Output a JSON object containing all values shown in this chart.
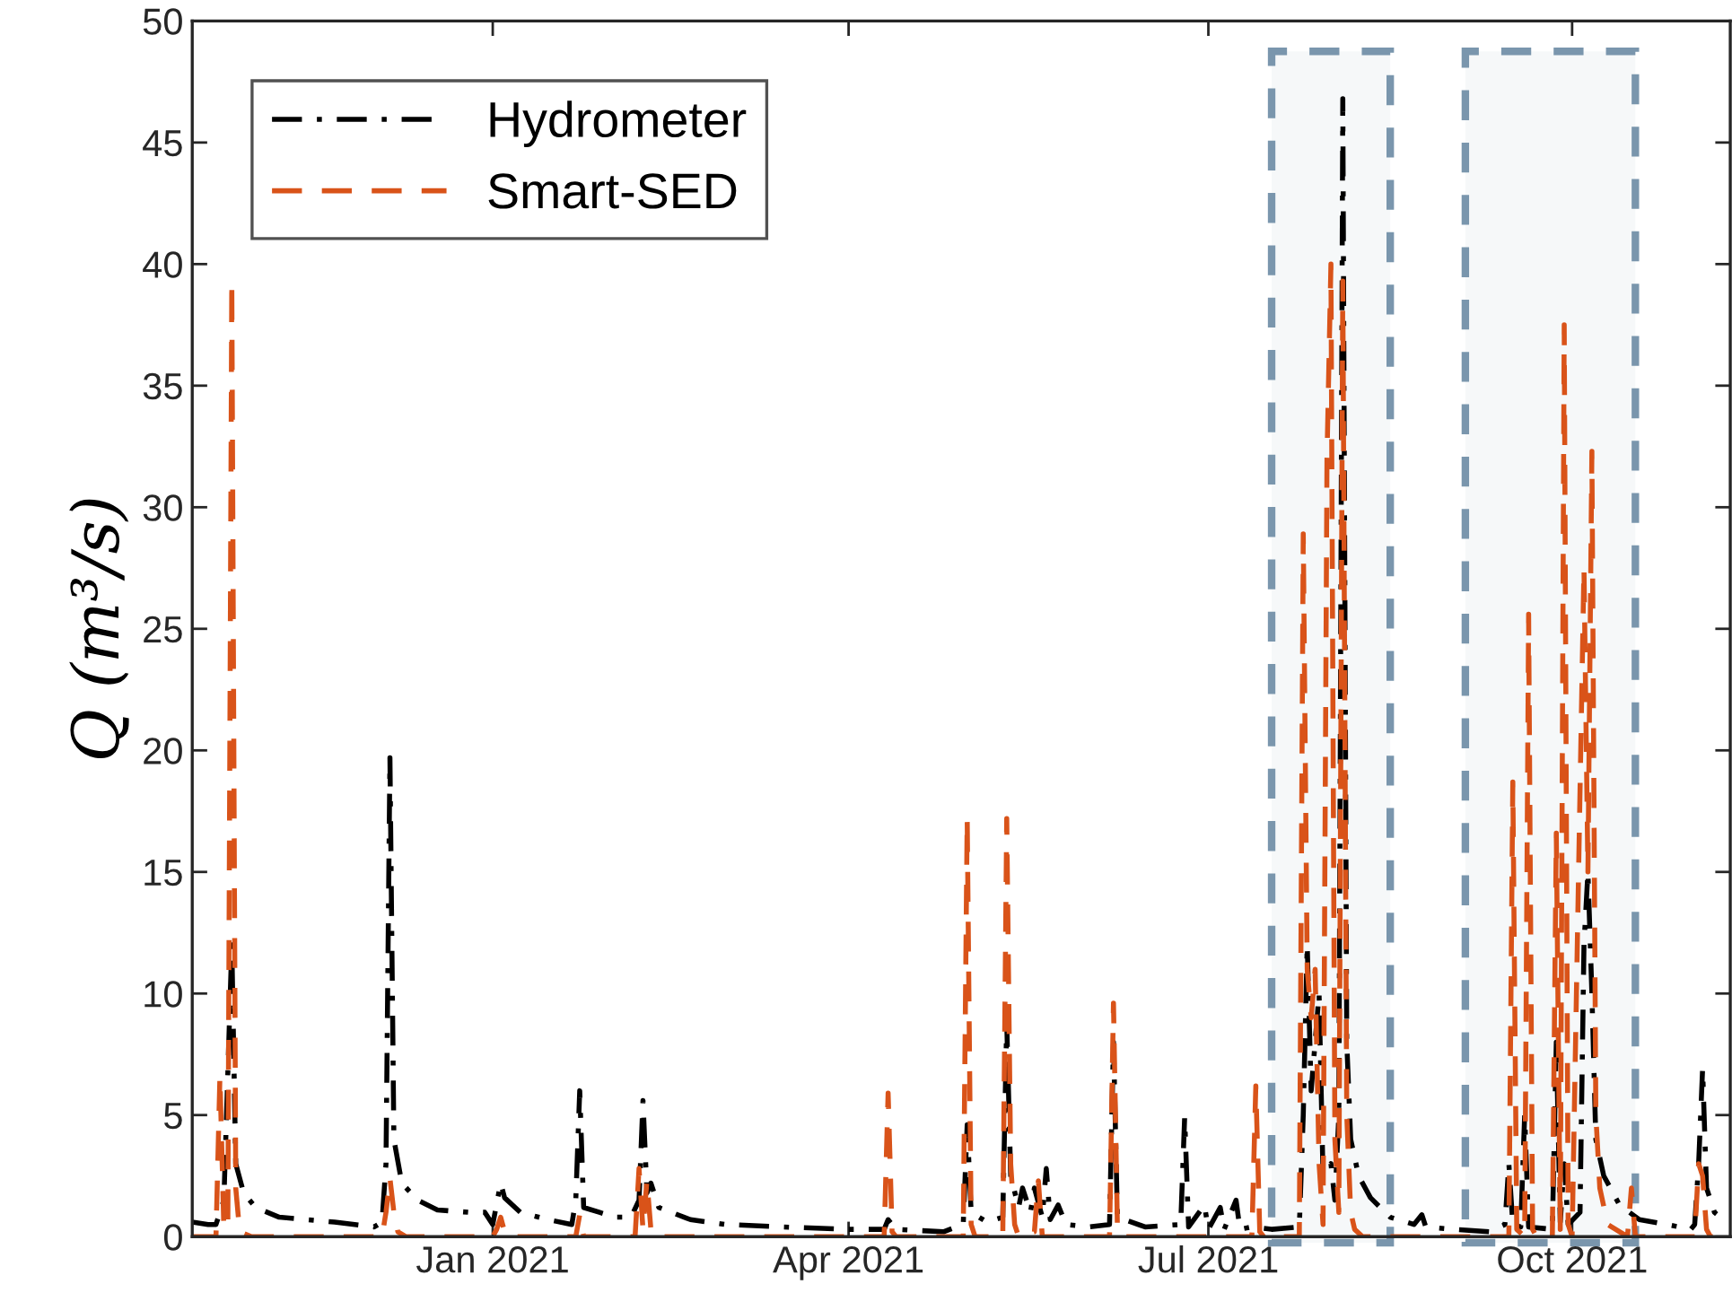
{
  "chart_data": {
    "type": "line",
    "ylabel": "Q (m³/s)",
    "xlim": [
      "2020-10-17",
      "2021-11-10"
    ],
    "ylim": [
      0,
      50
    ],
    "xticks": [
      {
        "value": "2021-01-01",
        "label": "Jan 2021"
      },
      {
        "value": "2021-04-01",
        "label": "Apr 2021"
      },
      {
        "value": "2021-07-01",
        "label": "Jul 2021"
      },
      {
        "value": "2021-10-01",
        "label": "Oct 2021"
      }
    ],
    "yticks": [
      0,
      5,
      10,
      15,
      20,
      25,
      30,
      35,
      40,
      45,
      50
    ],
    "grid": false,
    "legend": "top left",
    "bands": [
      {
        "axis": "x",
        "from": "2021-07-17",
        "to": "2021-08-16",
        "color": "#7a96ad"
      },
      {
        "axis": "x",
        "from": "2021-09-04",
        "to": "2021-10-17",
        "color": "#7a96ad"
      }
    ],
    "series": [
      {
        "name": "Hydrometer",
        "color": "#000000",
        "line_style": "dashdot",
        "x": [
          "2020-10-17",
          "2020-10-21",
          "2020-10-23",
          "2020-10-25",
          "2020-10-27",
          "2020-10-28",
          "2020-10-30",
          "2020-11-02",
          "2020-11-08",
          "2020-11-22",
          "2020-12-02",
          "2020-12-04",
          "2020-12-05",
          "2020-12-06",
          "2020-12-07",
          "2020-12-09",
          "2020-12-13",
          "2020-12-18",
          "2020-12-26",
          "2020-12-30",
          "2021-01-01",
          "2021-01-03",
          "2021-01-04",
          "2021-01-08",
          "2021-01-15",
          "2021-01-21",
          "2021-01-22",
          "2021-01-23",
          "2021-01-24",
          "2021-01-28",
          "2021-02-01",
          "2021-02-05",
          "2021-02-07",
          "2021-02-08",
          "2021-02-09",
          "2021-02-10",
          "2021-02-12",
          "2021-02-20",
          "2021-03-01",
          "2021-03-15",
          "2021-04-01",
          "2021-04-10",
          "2021-04-11",
          "2021-04-13",
          "2021-04-25",
          "2021-04-30",
          "2021-05-01",
          "2021-05-02",
          "2021-05-06",
          "2021-05-10",
          "2021-05-11",
          "2021-05-12",
          "2021-05-14",
          "2021-05-15",
          "2021-05-17",
          "2021-05-18",
          "2021-05-20",
          "2021-05-21",
          "2021-05-22",
          "2021-05-24",
          "2021-05-26",
          "2021-06-01",
          "2021-06-06",
          "2021-06-07",
          "2021-06-08",
          "2021-06-15",
          "2021-06-24",
          "2021-06-25",
          "2021-06-26",
          "2021-06-30",
          "2021-07-01",
          "2021-07-04",
          "2021-07-05",
          "2021-07-08",
          "2021-07-09",
          "2021-07-12",
          "2021-07-17",
          "2021-07-24",
          "2021-07-25",
          "2021-07-26",
          "2021-07-27",
          "2021-07-29",
          "2021-07-30",
          "2021-08-01",
          "2021-08-02",
          "2021-08-03",
          "2021-08-04",
          "2021-08-05",
          "2021-08-06",
          "2021-08-08",
          "2021-08-11",
          "2021-08-16",
          "2021-08-22",
          "2021-08-24",
          "2021-08-25",
          "2021-09-01",
          "2021-09-10",
          "2021-09-14",
          "2021-09-15",
          "2021-09-16",
          "2021-09-18",
          "2021-09-19",
          "2021-09-20",
          "2021-09-26",
          "2021-09-27",
          "2021-09-28",
          "2021-09-29",
          "2021-09-30",
          "2021-10-03",
          "2021-10-04",
          "2021-10-05",
          "2021-10-06",
          "2021-10-07",
          "2021-10-09",
          "2021-10-13",
          "2021-10-18",
          "2021-10-25",
          "2021-10-31",
          "2021-11-01",
          "2021-11-02",
          "2021-11-03",
          "2021-11-04",
          "2021-11-06",
          "2021-11-09"
        ],
        "values": [
          0.6,
          0.5,
          0.5,
          1.5,
          12,
          3,
          1.8,
          1.2,
          0.8,
          0.6,
          0.4,
          0.6,
          3,
          19.7,
          4,
          2.2,
          1.5,
          1.1,
          1.0,
          1.0,
          0.5,
          2.2,
          1.6,
          1.0,
          0.7,
          0.5,
          1.5,
          6.0,
          1.2,
          1.0,
          0.8,
          0.8,
          1.5,
          5.6,
          1.8,
          2.2,
          1.2,
          0.7,
          0.5,
          0.4,
          0.3,
          0.3,
          0.7,
          0.3,
          0.2,
          0.5,
          4.6,
          1.0,
          0.6,
          0.8,
          8.8,
          2.5,
          1.2,
          2.0,
          1.0,
          2.0,
          0.8,
          2.8,
          0.7,
          1.3,
          0.5,
          0.4,
          0.5,
          8.0,
          0.8,
          0.4,
          0.5,
          4.9,
          0.4,
          1.3,
          0.3,
          1.2,
          0.3,
          1.5,
          0.3,
          0.4,
          0.3,
          0.4,
          5,
          12,
          6,
          10,
          2.5,
          3,
          1.5,
          5,
          46.8,
          8,
          4,
          2.5,
          1.6,
          0.8,
          0.5,
          0.9,
          0.4,
          0.3,
          0.2,
          0.5,
          3,
          0.5,
          0.4,
          5,
          0.4,
          0.3,
          8,
          0.6,
          3,
          0.5,
          1,
          12,
          15,
          10,
          4,
          2.5,
          1.3,
          0.7,
          0.5,
          0.3,
          0.5,
          3,
          6.9,
          2,
          1,
          0.6
        ]
      },
      {
        "name": "Smart-SED",
        "color": "#d95319",
        "line_style": "dashed",
        "x": [
          "2020-10-17",
          "2020-10-23",
          "2020-10-24",
          "2020-10-25",
          "2020-10-26",
          "2020-10-27",
          "2020-10-28",
          "2020-10-29",
          "2020-11-01",
          "2020-12-04",
          "2020-12-05",
          "2020-12-06",
          "2020-12-07",
          "2020-12-08",
          "2020-12-10",
          "2021-01-01",
          "2021-01-02",
          "2021-01-03",
          "2021-01-04",
          "2021-01-05",
          "2021-01-22",
          "2021-01-23",
          "2021-01-24",
          "2021-02-06",
          "2021-02-07",
          "2021-02-08",
          "2021-02-09",
          "2021-02-10",
          "2021-02-11",
          "2021-04-10",
          "2021-04-11",
          "2021-04-12",
          "2021-04-13",
          "2021-04-30",
          "2021-05-01",
          "2021-05-02",
          "2021-05-03",
          "2021-05-10",
          "2021-05-11",
          "2021-05-12",
          "2021-05-13",
          "2021-05-14",
          "2021-05-18",
          "2021-05-19",
          "2021-05-20",
          "2021-06-06",
          "2021-06-07",
          "2021-06-08",
          "2021-06-09",
          "2021-07-12",
          "2021-07-13",
          "2021-07-14",
          "2021-07-15",
          "2021-07-24",
          "2021-07-25",
          "2021-07-26",
          "2021-07-27",
          "2021-07-28",
          "2021-07-29",
          "2021-07-30",
          "2021-07-31",
          "2021-08-01",
          "2021-08-02",
          "2021-08-03",
          "2021-08-04",
          "2021-08-05",
          "2021-08-06",
          "2021-08-07",
          "2021-08-09",
          "2021-09-15",
          "2021-09-16",
          "2021-09-17",
          "2021-09-19",
          "2021-09-20",
          "2021-09-21",
          "2021-09-22",
          "2021-09-26",
          "2021-09-27",
          "2021-09-28",
          "2021-09-29",
          "2021-09-30",
          "2021-10-01",
          "2021-10-04",
          "2021-10-05",
          "2021-10-06",
          "2021-10-07",
          "2021-10-08",
          "2021-10-10",
          "2021-10-15",
          "2021-10-16",
          "2021-10-17",
          "2021-11-01",
          "2021-11-02",
          "2021-11-03",
          "2021-11-04",
          "2021-11-05",
          "2021-11-10"
        ],
        "values": [
          0,
          0,
          6.6,
          0.3,
          0.5,
          39.3,
          2,
          0.2,
          0,
          0,
          1,
          2.4,
          1,
          0.2,
          0,
          0,
          0.3,
          0.8,
          0.2,
          0,
          0,
          0.9,
          0,
          0,
          2.8,
          0.3,
          2.3,
          0.3,
          0,
          0,
          5.9,
          0.2,
          0,
          0,
          17.2,
          0.5,
          0,
          0,
          17.2,
          3,
          0.5,
          0,
          0.2,
          2.3,
          0,
          0,
          9.6,
          0.3,
          0,
          0,
          6.2,
          0.2,
          0,
          0,
          28.9,
          11,
          9,
          11,
          3,
          0.5,
          32,
          40,
          4,
          1,
          39.3,
          5,
          1,
          0.3,
          0,
          0,
          18.7,
          0.3,
          0,
          25.6,
          0.3,
          0,
          0,
          16.6,
          0.3,
          37.5,
          0.5,
          0,
          27.5,
          15,
          32.3,
          5,
          2,
          0.5,
          0,
          2,
          0,
          0,
          3,
          2.5,
          0.3,
          0,
          0
        ]
      }
    ]
  }
}
